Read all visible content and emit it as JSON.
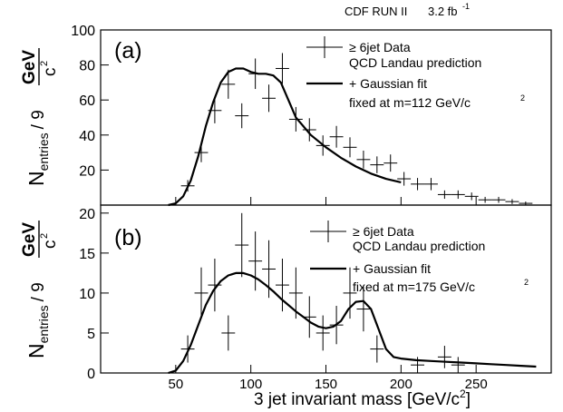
{
  "header": {
    "title": "CDF RUN II",
    "lumi": "3.2 fb",
    "lumi_exp": "-1"
  },
  "xaxis": {
    "label": "3 jet invariant mass [GeV/c",
    "label_exp": "2",
    "label_end": "]"
  },
  "yaxis": {
    "n": "N",
    "entries": "entries",
    "per": "/ 9",
    "gev": "GeV",
    "c": "c",
    "c_exp": "2"
  },
  "chart_data": [
    {
      "type": "scatter",
      "panel_label": "(a)",
      "legend": {
        "data_label": "≥ 6jet Data",
        "line1": "QCD Landau prediction",
        "line2": "+ Gaussian fit",
        "line3": "fixed at m=112 GeV/c",
        "line3_exp": "2"
      },
      "xlim": [
        0,
        300
      ],
      "ylim": [
        0,
        100
      ],
      "xticks": [
        50,
        100,
        150,
        200,
        250
      ],
      "yticks": [
        20,
        40,
        60,
        80,
        100
      ],
      "data": {
        "x": [
          58,
          67,
          76,
          85,
          94,
          103,
          112,
          121,
          130,
          139,
          148,
          157,
          166,
          175,
          184,
          193,
          202,
          211,
          220,
          229,
          238,
          247,
          256,
          265,
          274,
          283
        ],
        "y": [
          11,
          30,
          54,
          69,
          51,
          75,
          61,
          78,
          49,
          43,
          34,
          39,
          33,
          26,
          23,
          24,
          15,
          12,
          12,
          6,
          6,
          5,
          3,
          3,
          2,
          1
        ],
        "err": [
          3.3,
          5.5,
          7.3,
          8.3,
          7.1,
          8.7,
          7.8,
          8.8,
          7,
          6.6,
          5.8,
          6.2,
          5.7,
          5.1,
          4.8,
          4.9,
          3.9,
          3.5,
          3.5,
          2.4,
          2.4,
          2.2,
          1.7,
          1.7,
          1.4,
          1
        ]
      },
      "fit": {
        "x": [
          45,
          50,
          55,
          60,
          65,
          70,
          75,
          80,
          85,
          90,
          95,
          100,
          105,
          110,
          115,
          120,
          125,
          130,
          140,
          150,
          160,
          170,
          180,
          190,
          200
        ],
        "y": [
          0,
          1,
          5,
          14,
          28,
          45,
          59,
          70,
          76,
          78,
          78,
          76,
          75,
          75,
          74,
          70,
          60,
          50,
          40,
          33,
          27,
          22,
          18,
          15,
          13
        ]
      }
    },
    {
      "type": "scatter",
      "panel_label": "(b)",
      "legend": {
        "data_label": "≥ 6jet Data",
        "line1": "QCD Landau prediction",
        "line2": "+ Gaussian fit",
        "line3": "fixed at m=175 GeV/c",
        "line3_exp": "2"
      },
      "xlim": [
        0,
        300
      ],
      "ylim": [
        0,
        21
      ],
      "xticks": [
        50,
        100,
        150,
        200,
        250
      ],
      "yticks": [
        0,
        5,
        10,
        15,
        20
      ],
      "data": {
        "x": [
          58,
          67,
          76,
          85,
          94,
          103,
          112,
          121,
          130,
          139,
          148,
          157,
          166,
          175,
          184,
          211,
          229,
          238
        ],
        "y": [
          3,
          10,
          11,
          5,
          16,
          14,
          13,
          11,
          10,
          7,
          5,
          6,
          10,
          8,
          3,
          1,
          2,
          1
        ],
        "err": [
          1.7,
          3.2,
          3.3,
          2.2,
          4,
          3.7,
          3.6,
          3.3,
          3.2,
          2.6,
          2.2,
          2.4,
          3.2,
          2.8,
          1.7,
          1,
          1.4,
          1
        ]
      },
      "fit": {
        "x": [
          45,
          50,
          55,
          60,
          65,
          70,
          75,
          80,
          85,
          90,
          95,
          100,
          105,
          110,
          115,
          120,
          125,
          130,
          135,
          140,
          145,
          150,
          155,
          160,
          165,
          170,
          175,
          180,
          185,
          190,
          195,
          200,
          210,
          220,
          230,
          240,
          250,
          260,
          270,
          280,
          290
        ],
        "y": [
          0,
          0.3,
          1.5,
          3.5,
          6,
          8.5,
          10.3,
          11.5,
          12.2,
          12.5,
          12.5,
          12.2,
          11.7,
          11,
          10.2,
          9.3,
          8.5,
          7.7,
          7,
          6.3,
          5.8,
          5.6,
          5.8,
          6.5,
          8,
          8.9,
          9,
          8,
          5.5,
          3,
          2,
          1.8,
          1.6,
          1.5,
          1.4,
          1.3,
          1.2,
          1.1,
          1,
          0.9,
          0.8
        ]
      }
    }
  ]
}
